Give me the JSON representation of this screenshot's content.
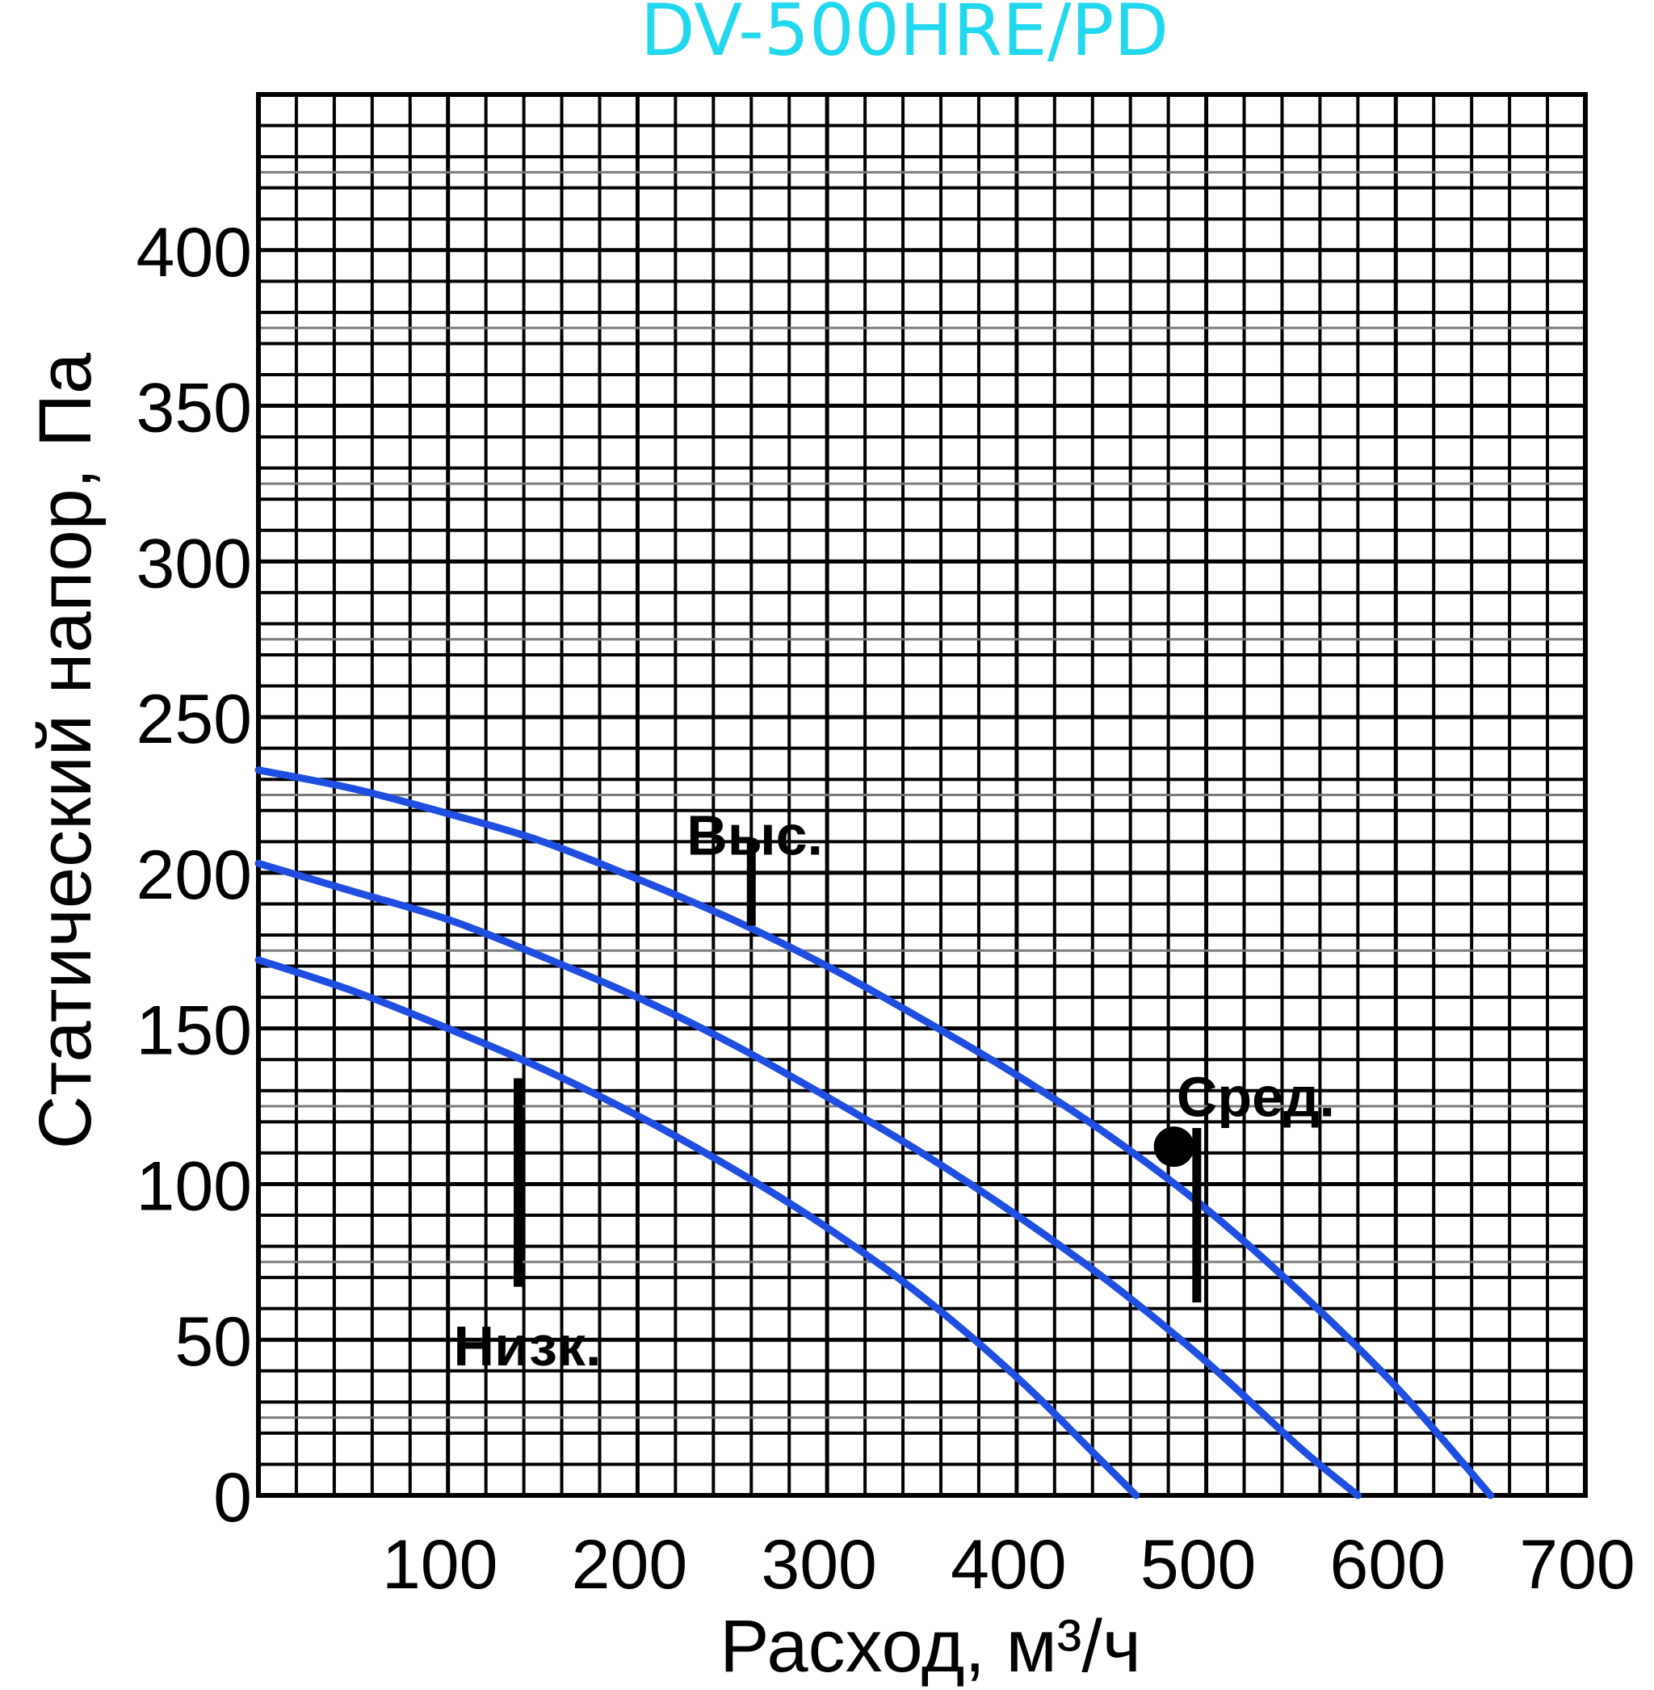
{
  "chart_data": {
    "type": "line",
    "title": "DV-500HRE/PD",
    "xlabel": "Расход, м³/ч",
    "ylabel": "Статический напор, Па",
    "xlim": [
      0,
      700
    ],
    "ylim": [
      0,
      450
    ],
    "x_ticks": [
      {
        "value": 100,
        "label": "100"
      },
      {
        "value": 200,
        "label": "200"
      },
      {
        "value": 300,
        "label": "300"
      },
      {
        "value": 400,
        "label": "400"
      },
      {
        "value": 500,
        "label": "500"
      },
      {
        "value": 600,
        "label": "600"
      },
      {
        "value": 700,
        "label": "700"
      }
    ],
    "y_ticks": [
      {
        "value": 0,
        "label": "0"
      },
      {
        "value": 50,
        "label": "50"
      },
      {
        "value": 100,
        "label": "100"
      },
      {
        "value": 150,
        "label": "150"
      },
      {
        "value": 200,
        "label": "200"
      },
      {
        "value": 250,
        "label": "250"
      },
      {
        "value": 300,
        "label": "300"
      },
      {
        "value": 350,
        "label": "350"
      },
      {
        "value": 400,
        "label": "400"
      }
    ],
    "grid": true,
    "series": [
      {
        "name": "Выс.",
        "x": [
          0,
          50,
          100,
          150,
          200,
          250,
          300,
          350,
          400,
          450,
          500,
          550,
          600,
          650
        ],
        "y": [
          233,
          227,
          219,
          210,
          198,
          185,
          170,
          153,
          135,
          115,
          92,
          65,
          35,
          0
        ]
      },
      {
        "name": "Сред.",
        "x": [
          0,
          50,
          100,
          150,
          200,
          250,
          300,
          350,
          400,
          450,
          500,
          550,
          580
        ],
        "y": [
          203,
          194,
          185,
          173,
          160,
          145,
          128,
          110,
          90,
          68,
          43,
          15,
          0
        ]
      },
      {
        "name": "Низк.",
        "x": [
          0,
          50,
          100,
          150,
          200,
          250,
          300,
          350,
          400,
          440,
          463
        ],
        "y": [
          172,
          162,
          150,
          137,
          122,
          105,
          86,
          64,
          38,
          14,
          0
        ]
      }
    ],
    "annotations": [
      {
        "text": "Выс.",
        "series": "Выс.",
        "x": 260,
        "y_label": 212,
        "marker": [
          {
            "x": 260,
            "y": 183
          },
          {
            "x": 260,
            "y": 210
          }
        ]
      },
      {
        "text": "Сред.",
        "series": "Сред.",
        "x": 495,
        "y_label": 128,
        "marker": [
          {
            "x": 495,
            "y": 62
          },
          {
            "x": 495,
            "y": 118
          }
        ],
        "point": {
          "x": 483,
          "y": 112
        }
      },
      {
        "text": "Низк.",
        "series": "Низк.",
        "x": 137,
        "y_label": 48,
        "marker": [
          {
            "x": 137,
            "y": 67
          },
          {
            "x": 137,
            "y": 134
          }
        ]
      }
    ],
    "colors": {
      "series": "#1f4fe0",
      "title": "#22d8ee",
      "grid": "#000000",
      "minor_grid": "#7a7a7a"
    }
  }
}
